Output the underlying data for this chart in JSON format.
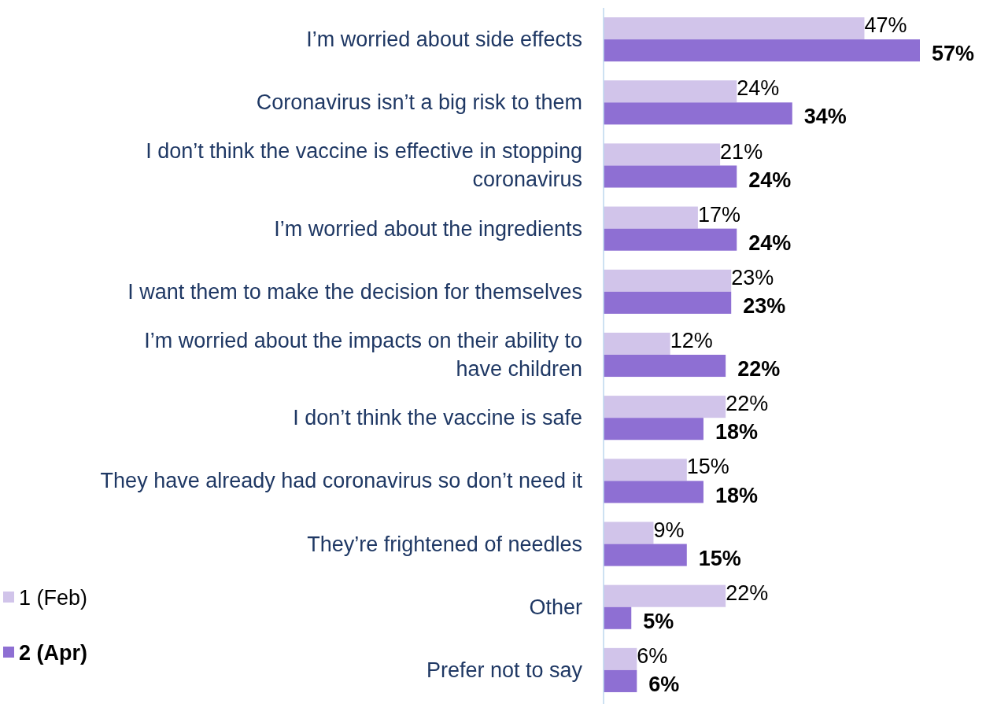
{
  "chart_data": {
    "type": "bar",
    "orientation": "horizontal",
    "legend": "bottom left",
    "categories": [
      "I’m worried about side effects",
      "Coronavirus isn’t a big risk to them",
      "I don’t think the vaccine is effective in stopping coronavirus",
      "I’m worried about the ingredients",
      "I want them to make the decision for themselves",
      "I’m worried about the impacts on their ability to have children",
      "I don’t think the vaccine is safe",
      "They have already had coronavirus so don’t need it",
      "They’re frightened of needles",
      "Other",
      "Prefer not to say"
    ],
    "series": [
      {
        "name": "1 (Feb)",
        "color": "#d1c4ea",
        "values": [
          47,
          24,
          21,
          17,
          23,
          12,
          22,
          15,
          9,
          22,
          6
        ],
        "value_labels": [
          "47%",
          "24%",
          "21%",
          "17%",
          "23%",
          "12%",
          "22%",
          "15%",
          "9%",
          "22%",
          "6%"
        ]
      },
      {
        "name": "2 (Apr)",
        "color": "#8e6fd3",
        "values": [
          57,
          34,
          24,
          24,
          23,
          22,
          18,
          18,
          15,
          5,
          6
        ],
        "value_labels": [
          "57%",
          "34%",
          "24%",
          "24%",
          "23%",
          "22%",
          "18%",
          "18%",
          "15%",
          "5%",
          "6%"
        ]
      }
    ]
  }
}
